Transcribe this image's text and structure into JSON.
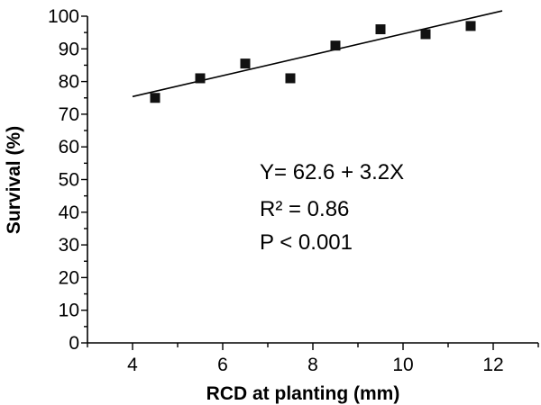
{
  "chart_data": {
    "type": "scatter",
    "xlabel": "RCD at planting (mm)",
    "ylabel": "Survival (%)",
    "xlim": [
      3,
      13
    ],
    "ylim": [
      0,
      100
    ],
    "x_ticks": [
      4,
      6,
      8,
      10,
      12
    ],
    "y_ticks": [
      0,
      10,
      20,
      30,
      40,
      50,
      60,
      70,
      80,
      90,
      100
    ],
    "grid": false,
    "points": [
      {
        "x": 4.5,
        "y": 75
      },
      {
        "x": 5.5,
        "y": 81
      },
      {
        "x": 6.5,
        "y": 85.5
      },
      {
        "x": 7.5,
        "y": 81
      },
      {
        "x": 8.5,
        "y": 91
      },
      {
        "x": 9.5,
        "y": 96
      },
      {
        "x": 10.5,
        "y": 94.5
      },
      {
        "x": 11.5,
        "y": 97
      }
    ],
    "regression": {
      "intercept": 62.6,
      "slope": 3.2,
      "x_start": 4,
      "x_end": 12.2
    },
    "annotations": [
      "Y= 62.6 + 3.2X",
      "R²  = 0.86",
      "P < 0.001"
    ]
  }
}
